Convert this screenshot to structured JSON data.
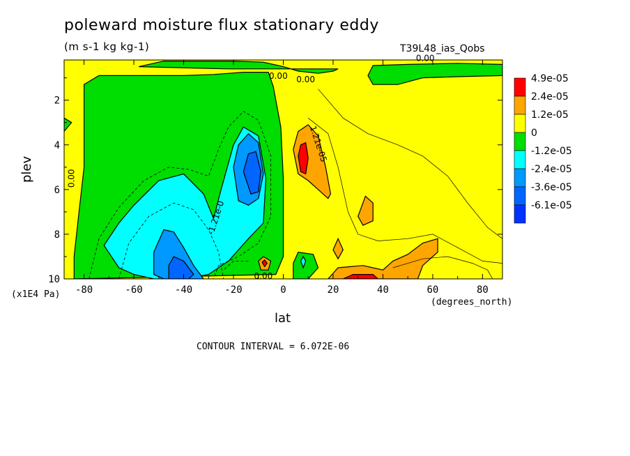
{
  "chart_data": {
    "type": "heatmap",
    "title": "poleward moisture flux stationary eddy",
    "units": "(m s-1 kg kg-1)",
    "source_label": "T39L48_ias_Qobs",
    "xlabel": "lat",
    "ylabel": "plev",
    "x_units": "(degrees_north)",
    "y_units": "(x1E4 Pa)",
    "x_ticks": [
      "-80",
      "-60",
      "-40",
      "-20",
      "0",
      "20",
      "40",
      "60",
      "80"
    ],
    "y_ticks": [
      "2",
      "4",
      "6",
      "8",
      "10"
    ],
    "xlim": [
      -88,
      88
    ],
    "ylim": [
      10,
      0.2
    ],
    "contour_interval_text": "CONTOUR INTERVAL = 6.072E-06",
    "levels": [
      {
        "label": "4.9e-05",
        "color": "#ff0000"
      },
      {
        "label": "2.4e-05",
        "color": "#ffa500"
      },
      {
        "label": "1.2e-05",
        "color": "#ffff00"
      },
      {
        "label": "0",
        "color": "#00dd00"
      },
      {
        "label": "-1.2e-05",
        "color": "#00ffff"
      },
      {
        "label": "-2.4e-05",
        "color": "#0099ff"
      },
      {
        "label": "-3.6e-05",
        "color": "#0066ff"
      },
      {
        "label": "-6.1e-05",
        "color": "#0033ff"
      }
    ],
    "contour_labels": [
      "0.00",
      "0.00",
      "0.00",
      "0.00",
      "0.00",
      "-1.21e-0",
      "1.21e-05"
    ],
    "regions": [
      {
        "name": "background",
        "color": "#ffff00",
        "points": [
          [
            -88,
            0.2
          ],
          [
            88,
            0.2
          ],
          [
            88,
            10
          ],
          [
            -88,
            10
          ]
        ]
      },
      {
        "name": "sh-negative-0",
        "color": "#00dd00",
        "points": [
          [
            -80,
            1.3
          ],
          [
            -74,
            0.9
          ],
          [
            -58,
            0.9
          ],
          [
            -40,
            0.9
          ],
          [
            -28,
            0.85
          ],
          [
            -16,
            0.75
          ],
          [
            -6,
            0.75
          ],
          [
            -4,
            1.4
          ],
          [
            -1,
            3.2
          ],
          [
            0,
            5.5
          ],
          [
            0,
            9.0
          ],
          [
            -3,
            9.8
          ],
          [
            -84,
            10
          ],
          [
            -84,
            9
          ],
          [
            -82,
            7
          ],
          [
            -80,
            5
          ],
          [
            -80,
            3
          ]
        ]
      },
      {
        "name": "top-negative-band",
        "color": "#00dd00",
        "points": [
          [
            -58,
            0.5
          ],
          [
            -48,
            0.25
          ],
          [
            -20,
            0.25
          ],
          [
            -8,
            0.3
          ],
          [
            0,
            0.5
          ],
          [
            6,
            0.7
          ],
          [
            14,
            0.8
          ],
          [
            20,
            0.7
          ],
          [
            22,
            0.6
          ],
          [
            -22,
            0.6
          ]
        ]
      },
      {
        "name": "top-negative-band-nh",
        "color": "#00dd00",
        "points": [
          [
            34,
            0.9
          ],
          [
            36,
            0.45
          ],
          [
            50,
            0.4
          ],
          [
            70,
            0.35
          ],
          [
            88,
            0.4
          ],
          [
            88,
            0.9
          ],
          [
            70,
            0.95
          ],
          [
            56,
            1.0
          ],
          [
            46,
            1.3
          ],
          [
            36,
            1.3
          ]
        ]
      },
      {
        "name": "edge-negative",
        "color": "#00dd00",
        "points": [
          [
            -88,
            2.8
          ],
          [
            -85,
            3.0
          ],
          [
            -88,
            3.4
          ]
        ]
      },
      {
        "name": "sh-minus-12",
        "color": "#00ffff",
        "points": [
          [
            -72,
            8.5
          ],
          [
            -66,
            7.5
          ],
          [
            -60,
            6.7
          ],
          [
            -50,
            5.6
          ],
          [
            -40,
            5.3
          ],
          [
            -32,
            6.2
          ],
          [
            -28,
            7.3
          ],
          [
            -25,
            6.0
          ],
          [
            -20,
            4.0
          ],
          [
            -16,
            3.2
          ],
          [
            -10,
            3.6
          ],
          [
            -7,
            5.5
          ],
          [
            -8,
            7.5
          ],
          [
            -14,
            8.2
          ],
          [
            -22,
            9.2
          ],
          [
            -30,
            9.8
          ],
          [
            -40,
            10
          ],
          [
            -52,
            10
          ],
          [
            -60,
            9.8
          ],
          [
            -66,
            9.5
          ]
        ]
      },
      {
        "name": "sh-minus-24-upper",
        "color": "#0099ff",
        "points": [
          [
            -20,
            5.0
          ],
          [
            -18,
            4.0
          ],
          [
            -14,
            3.5
          ],
          [
            -10,
            3.9
          ],
          [
            -8,
            5.3
          ],
          [
            -10,
            6.4
          ],
          [
            -14,
            6.7
          ],
          [
            -18,
            6.5
          ]
        ]
      },
      {
        "name": "sh-minus-24-lower",
        "color": "#0099ff",
        "points": [
          [
            -52,
            8.8
          ],
          [
            -48,
            7.8
          ],
          [
            -44,
            7.9
          ],
          [
            -40,
            8.6
          ],
          [
            -36,
            9.4
          ],
          [
            -32,
            10
          ],
          [
            -48,
            10
          ],
          [
            -52,
            9.8
          ]
        ]
      },
      {
        "name": "sh-minus-36-upper",
        "color": "#0066ff",
        "points": [
          [
            -16,
            5.2
          ],
          [
            -14,
            4.4
          ],
          [
            -11,
            4.3
          ],
          [
            -9,
            5.2
          ],
          [
            -10,
            6.1
          ],
          [
            -13,
            6.2
          ]
        ]
      },
      {
        "name": "sh-minus-36-lower",
        "color": "#0066ff",
        "points": [
          [
            -46,
            9.4
          ],
          [
            -44,
            9.0
          ],
          [
            -40,
            9.2
          ],
          [
            -36,
            9.8
          ],
          [
            -38,
            10
          ],
          [
            -46,
            10
          ]
        ]
      },
      {
        "name": "nh-surface-negative",
        "color": "#00dd00",
        "points": [
          [
            4,
            9.3
          ],
          [
            6,
            8.8
          ],
          [
            12,
            8.9
          ],
          [
            14,
            9.5
          ],
          [
            10,
            10
          ],
          [
            4,
            10
          ]
        ]
      },
      {
        "name": "sfc-cyan-spot",
        "color": "#00ffff",
        "points": [
          [
            7,
            9.2
          ],
          [
            8,
            9.0
          ],
          [
            9,
            9.2
          ],
          [
            8,
            9.5
          ]
        ]
      },
      {
        "name": "nh-pos-1",
        "color": "#ffa500",
        "points": [
          [
            4,
            4.2
          ],
          [
            6,
            3.4
          ],
          [
            10,
            3.1
          ],
          [
            14,
            3.6
          ],
          [
            17,
            5.0
          ],
          [
            19,
            6.2
          ],
          [
            18,
            6.4
          ],
          [
            14,
            6.0
          ],
          [
            10,
            5.6
          ],
          [
            6,
            5.3
          ]
        ]
      },
      {
        "name": "nh-pos-2",
        "color": "#ff0000",
        "points": [
          [
            6,
            4.5
          ],
          [
            7,
            4.0
          ],
          [
            9,
            3.9
          ],
          [
            10,
            4.6
          ],
          [
            9,
            5.3
          ],
          [
            7,
            5.2
          ]
        ]
      },
      {
        "name": "nh-pos-3",
        "color": "#ffa500",
        "points": [
          [
            30,
            7.2
          ],
          [
            33,
            6.3
          ],
          [
            36,
            6.6
          ],
          [
            36,
            7.4
          ],
          [
            32,
            7.6
          ]
        ]
      },
      {
        "name": "nh-pos-4",
        "color": "#ffa500",
        "points": [
          [
            20,
            8.7
          ],
          [
            22,
            8.2
          ],
          [
            24,
            8.7
          ],
          [
            22,
            9.1
          ]
        ]
      },
      {
        "name": "nh-pos-surface",
        "color": "#ffa500",
        "points": [
          [
            18,
            10
          ],
          [
            22,
            9.5
          ],
          [
            32,
            9.4
          ],
          [
            40,
            9.6
          ],
          [
            44,
            9.2
          ],
          [
            50,
            8.9
          ],
          [
            56,
            8.4
          ],
          [
            62,
            8.2
          ],
          [
            62,
            8.8
          ],
          [
            56,
            9.4
          ],
          [
            54,
            10
          ]
        ]
      },
      {
        "name": "nh-pos-surface-red",
        "color": "#ff0000",
        "points": [
          [
            24,
            10
          ],
          [
            28,
            9.8
          ],
          [
            36,
            9.8
          ],
          [
            38,
            10
          ]
        ]
      },
      {
        "name": "sfc-small-pos",
        "color": "#ffa500",
        "points": [
          [
            -10,
            9.2
          ],
          [
            -8,
            9.0
          ],
          [
            -5,
            9.2
          ],
          [
            -6,
            9.6
          ],
          [
            -9,
            9.6
          ]
        ]
      },
      {
        "name": "sfc-small-red",
        "color": "#ff0000",
        "points": [
          [
            -8.5,
            9.25
          ],
          [
            -7.5,
            9.15
          ],
          [
            -6.5,
            9.3
          ],
          [
            -7.5,
            9.45
          ]
        ]
      }
    ],
    "dashed_contours": [
      [
        [
          -78,
          10
        ],
        [
          -74,
          8.2
        ],
        [
          -66,
          6.8
        ],
        [
          -56,
          5.6
        ],
        [
          -46,
          5.0
        ],
        [
          -38,
          5.1
        ],
        [
          -30,
          5.4
        ],
        [
          -26,
          4.2
        ],
        [
          -22,
          3.2
        ],
        [
          -16,
          2.5
        ],
        [
          -10,
          2.9
        ],
        [
          -5,
          4.5
        ],
        [
          -5,
          7.2
        ],
        [
          -10,
          8.4
        ],
        [
          -18,
          9.0
        ],
        [
          -26,
          9.4
        ],
        [
          -28,
          10
        ]
      ],
      [
        [
          -66,
          10
        ],
        [
          -62,
          8.4
        ],
        [
          -54,
          7.2
        ],
        [
          -44,
          6.6
        ],
        [
          -36,
          6.9
        ],
        [
          -30,
          7.8
        ],
        [
          -26,
          8.8
        ],
        [
          -24,
          10
        ]
      ],
      [
        [
          -14,
          9.2
        ],
        [
          -20,
          9.2
        ],
        [
          -24,
          9.6
        ]
      ]
    ],
    "solid_contours": [
      [
        [
          14,
          1.5
        ],
        [
          24,
          2.8
        ],
        [
          34,
          3.5
        ],
        [
          46,
          4.0
        ],
        [
          56,
          4.5
        ],
        [
          66,
          5.4
        ],
        [
          74,
          6.6
        ],
        [
          82,
          7.7
        ],
        [
          88,
          8.2
        ]
      ],
      [
        [
          10,
          2.8
        ],
        [
          18,
          3.5
        ],
        [
          22,
          5.0
        ],
        [
          26,
          7.0
        ],
        [
          30,
          8.0
        ],
        [
          38,
          8.3
        ],
        [
          50,
          8.2
        ],
        [
          60,
          8.0
        ],
        [
          70,
          8.6
        ],
        [
          80,
          9.2
        ],
        [
          88,
          9.3
        ]
      ],
      [
        [
          44,
          9.5
        ],
        [
          56,
          9.1
        ],
        [
          66,
          9.0
        ],
        [
          76,
          9.3
        ],
        [
          82,
          9.6
        ],
        [
          84,
          10
        ]
      ]
    ],
    "contour_label_positions": [
      {
        "text": "0.00",
        "x": -2,
        "y": 1.05,
        "rot": 0
      },
      {
        "text": "0.00",
        "x": 9,
        "y": 1.2,
        "rot": 0
      },
      {
        "text": "0.00",
        "x": 57,
        "y": 0.25,
        "rot": 0
      },
      {
        "text": "0.00",
        "x": -84,
        "y": 5.5,
        "rot": -90
      },
      {
        "text": "0.00",
        "x": -8,
        "y": 10,
        "rot": 0
      },
      {
        "text": "-1.21e-0",
        "x": -26,
        "y": 7.3,
        "rot": -72
      },
      {
        "text": "1.21e-05",
        "x": 13,
        "y": 4.0,
        "rot": 72
      }
    ]
  }
}
